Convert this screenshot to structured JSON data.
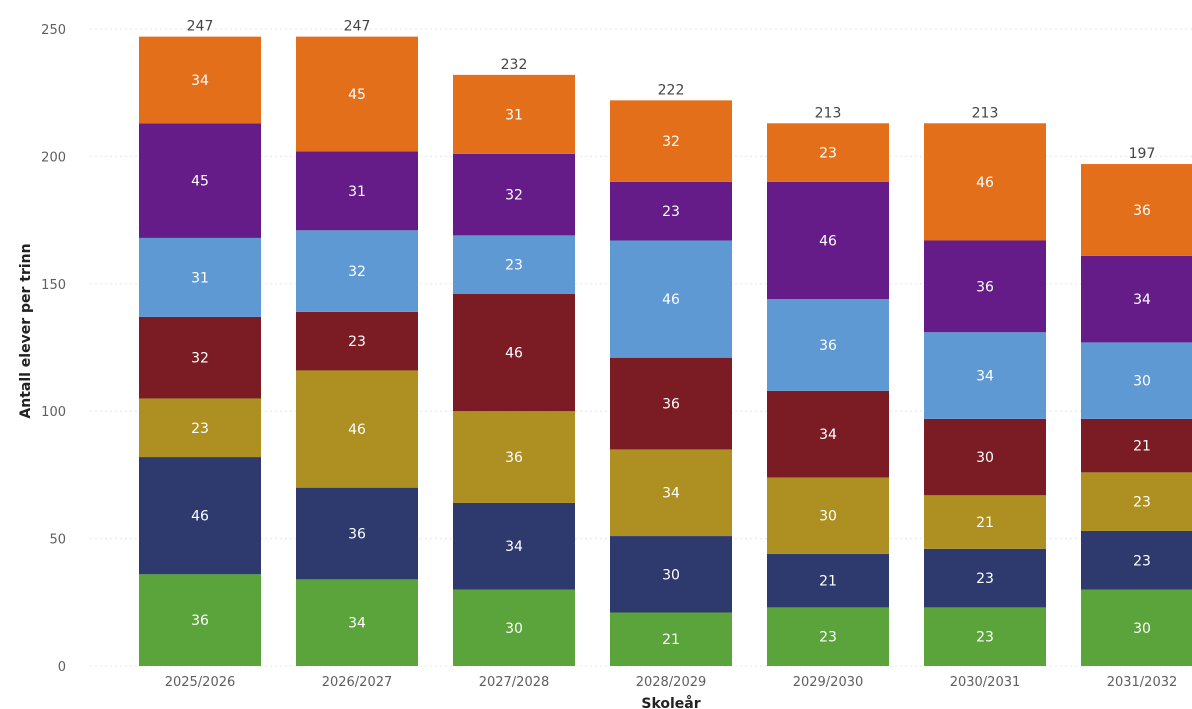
{
  "chart_data": {
    "type": "bar",
    "stacked": true,
    "title": "",
    "xlabel": "Skoleår",
    "ylabel": "Antall elever per trinn",
    "ylim": [
      0,
      250
    ],
    "yticks": [
      0,
      50,
      100,
      150,
      200,
      250
    ],
    "grid": true,
    "legend": "none",
    "categories": [
      "2025/2026",
      "2026/2027",
      "2027/2028",
      "2028/2029",
      "2029/2030",
      "2030/2031",
      "2031/2032"
    ],
    "totals": [
      247,
      247,
      232,
      222,
      213,
      213,
      197
    ],
    "series": [
      {
        "color": "#5ba33b",
        "values": [
          36,
          34,
          30,
          21,
          23,
          23,
          30
        ]
      },
      {
        "color": "#2e3a6e",
        "values": [
          46,
          36,
          34,
          30,
          21,
          23,
          23
        ]
      },
      {
        "color": "#ad9021",
        "values": [
          23,
          46,
          36,
          34,
          30,
          21,
          23
        ]
      },
      {
        "color": "#7b1c24",
        "values": [
          32,
          23,
          46,
          36,
          34,
          30,
          21
        ]
      },
      {
        "color": "#5e99d3",
        "values": [
          31,
          32,
          23,
          46,
          36,
          34,
          30
        ]
      },
      {
        "color": "#651c89",
        "values": [
          45,
          31,
          32,
          23,
          46,
          36,
          34
        ]
      },
      {
        "color": "#e46f1b",
        "values": [
          34,
          45,
          31,
          32,
          23,
          46,
          36
        ]
      }
    ]
  }
}
